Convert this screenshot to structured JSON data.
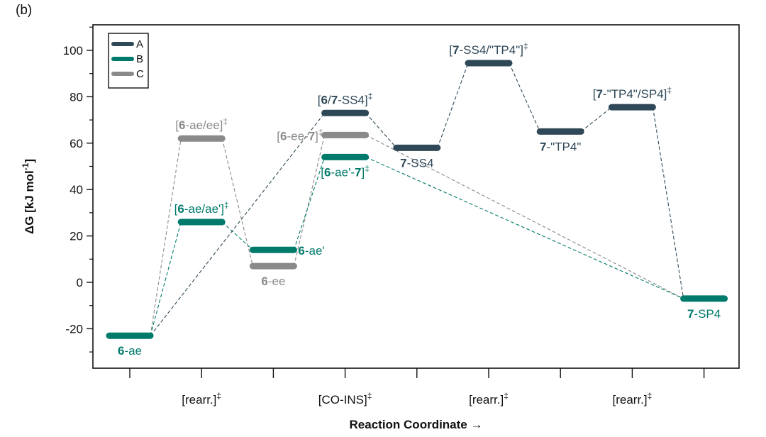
{
  "panel_label": "(b)",
  "colors": {
    "A": "#2f4858",
    "B": "#007a6a",
    "C": "#8a8a8a"
  },
  "chart_data": {
    "type": "energy-profile",
    "xlabel": "Reaction Coordinate →",
    "ylabel": "ΔG [kJ mol",
    "ylabel_sup": "-1",
    "ylabel_end": "]",
    "ylim": [
      -37,
      111
    ],
    "y_ticks": [
      -20,
      0,
      20,
      40,
      60,
      80,
      100
    ],
    "y_minor_ticks": [
      -30,
      -10,
      10,
      30,
      50,
      70,
      90,
      110
    ],
    "x_ticks": [
      {
        "pos": 1,
        "label": ""
      },
      {
        "pos": 2,
        "label": "[rearr.]",
        "sup": "‡"
      },
      {
        "pos": 3,
        "label": ""
      },
      {
        "pos": 4,
        "label": "[CO-INS]",
        "sup": "‡"
      },
      {
        "pos": 5,
        "label": ""
      },
      {
        "pos": 6,
        "label": "[rearr.]",
        "sup": "‡"
      },
      {
        "pos": 7,
        "label": ""
      },
      {
        "pos": 8,
        "label": "[rearr.]",
        "sup": "‡"
      },
      {
        "pos": 9,
        "label": ""
      }
    ],
    "legend": {
      "placement": "top-left",
      "entries": [
        {
          "series": "A",
          "label": "A"
        },
        {
          "series": "B",
          "label": "B"
        },
        {
          "series": "C",
          "label": "C"
        }
      ]
    },
    "states": [
      {
        "id": "ae",
        "pos": 1,
        "value": -23,
        "series": "B",
        "label": [
          {
            "t": "6",
            "b": true
          },
          {
            "t": "-ae"
          }
        ],
        "label_pos": "below"
      },
      {
        "id": "tsC1",
        "pos": 2,
        "value": 62,
        "series": "C",
        "label": [
          {
            "t": "["
          },
          {
            "t": "6",
            "b": true
          },
          {
            "t": "-ae/ee]"
          },
          {
            "t": "‡",
            "sup": true
          }
        ],
        "label_pos": "above"
      },
      {
        "id": "tsB1",
        "pos": 2,
        "value": 26,
        "series": "B",
        "label": [
          {
            "t": "["
          },
          {
            "t": "6",
            "b": true
          },
          {
            "t": "-ae/ae']"
          },
          {
            "t": "‡",
            "sup": true
          }
        ],
        "label_pos": "above"
      },
      {
        "id": "ae2",
        "pos": 3,
        "value": 14,
        "series": "B",
        "label": [
          {
            "t": "6",
            "b": true
          },
          {
            "t": "-ae'"
          }
        ],
        "label_pos": "right"
      },
      {
        "id": "ee",
        "pos": 3,
        "value": 7,
        "series": "C",
        "label": [
          {
            "t": "6",
            "b": true
          },
          {
            "t": "-ee"
          }
        ],
        "label_pos": "below"
      },
      {
        "id": "tsA1",
        "pos": 4,
        "value": 73,
        "series": "A",
        "label": [
          {
            "t": "["
          },
          {
            "t": "6",
            "b": true
          },
          {
            "t": "/"
          },
          {
            "t": "7",
            "b": true
          },
          {
            "t": "-SS4]"
          },
          {
            "t": "‡",
            "sup": true
          }
        ],
        "label_pos": "above"
      },
      {
        "id": "tsC2",
        "pos": 4,
        "value": 63.5,
        "series": "C",
        "label": [
          {
            "t": "["
          },
          {
            "t": "6",
            "b": true
          },
          {
            "t": "-ee-"
          },
          {
            "t": "7",
            "b": true
          },
          {
            "t": "]"
          },
          {
            "t": "‡",
            "sup": true
          }
        ],
        "label_pos": "left"
      },
      {
        "id": "tsB2",
        "pos": 4,
        "value": 54,
        "series": "B",
        "label": [
          {
            "t": "["
          },
          {
            "t": "6",
            "b": true
          },
          {
            "t": "-ae'-"
          },
          {
            "t": "7",
            "b": true
          },
          {
            "t": "]"
          },
          {
            "t": "‡",
            "sup": true
          }
        ],
        "label_pos": "below"
      },
      {
        "id": "ss4",
        "pos": 5,
        "value": 58,
        "series": "A",
        "label": [
          {
            "t": "7",
            "b": true
          },
          {
            "t": "-SS4"
          }
        ],
        "label_pos": "below"
      },
      {
        "id": "tsA2",
        "pos": 6,
        "value": 94.5,
        "series": "A",
        "label": [
          {
            "t": "["
          },
          {
            "t": "7",
            "b": true
          },
          {
            "t": "-SS4/\"TP4\"]"
          },
          {
            "t": "‡",
            "sup": true
          }
        ],
        "label_pos": "above"
      },
      {
        "id": "tp4",
        "pos": 7,
        "value": 65,
        "series": "A",
        "label": [
          {
            "t": "7",
            "b": true
          },
          {
            "t": "-\"TP4\""
          }
        ],
        "label_pos": "below"
      },
      {
        "id": "tsA3",
        "pos": 8,
        "value": 75.5,
        "series": "A",
        "label": [
          {
            "t": "["
          },
          {
            "t": "7",
            "b": true
          },
          {
            "t": "-\"TP4\"/SP4]"
          },
          {
            "t": "‡",
            "sup": true
          }
        ],
        "label_pos": "above"
      },
      {
        "id": "sp4",
        "pos": 9,
        "value": -7,
        "series": "B",
        "label": [
          {
            "t": "7",
            "b": true
          },
          {
            "t": "-SP4"
          }
        ],
        "label_pos": "below"
      }
    ],
    "connections": [
      {
        "from": "ae",
        "to": "tsC1",
        "series": "C"
      },
      {
        "from": "tsC1",
        "to": "ee",
        "series": "C"
      },
      {
        "from": "ee",
        "to": "tsC2",
        "series": "C"
      },
      {
        "from": "tsC2",
        "to": "sp4",
        "series": "C"
      },
      {
        "from": "ae",
        "to": "tsB1",
        "series": "B"
      },
      {
        "from": "tsB1",
        "to": "ae2",
        "series": "B"
      },
      {
        "from": "ae2",
        "to": "tsB2",
        "series": "B"
      },
      {
        "from": "tsB2",
        "to": "sp4",
        "series": "B"
      },
      {
        "from": "ae",
        "to": "tsA1",
        "series": "A"
      },
      {
        "from": "tsA1",
        "to": "ss4",
        "series": "A"
      },
      {
        "from": "ss4",
        "to": "tsA2",
        "series": "A"
      },
      {
        "from": "tsA2",
        "to": "tp4",
        "series": "A"
      },
      {
        "from": "tp4",
        "to": "tsA3",
        "series": "A"
      },
      {
        "from": "tsA3",
        "to": "sp4",
        "series": "A"
      }
    ]
  }
}
